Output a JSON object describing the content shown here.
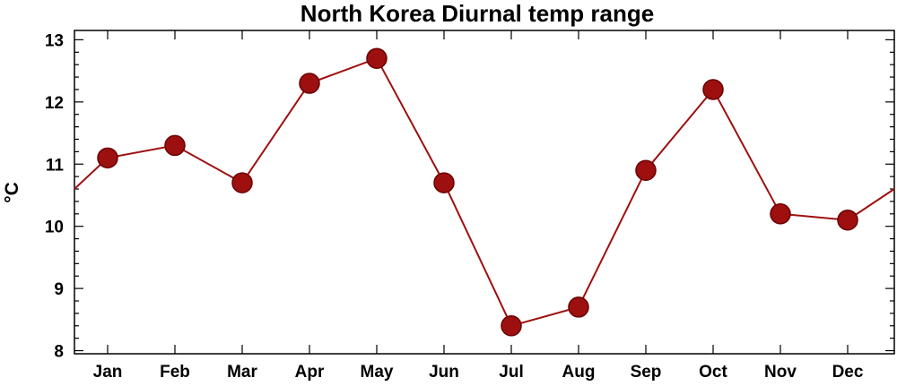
{
  "chart_data": {
    "type": "line",
    "title": "North Korea Diurnal temp range",
    "xlabel": "",
    "ylabel": "°C",
    "categories": [
      "Jan",
      "Feb",
      "Mar",
      "Apr",
      "May",
      "Jun",
      "Jul",
      "Aug",
      "Sep",
      "Oct",
      "Nov",
      "Dec"
    ],
    "series": [
      {
        "values": [
          11.1,
          11.3,
          10.7,
          12.3,
          12.7,
          10.7,
          8.4,
          8.7,
          10.9,
          12.2,
          10.2,
          10.1
        ]
      }
    ],
    "wraparound": {
      "start_value": 10.6,
      "end_value": 10.6
    },
    "ylim": [
      7.95,
      13.15
    ],
    "yticks": [
      8,
      9,
      10,
      11,
      12,
      13
    ],
    "ytick_labels": [
      "8",
      "9",
      "10",
      "11",
      "12",
      "13"
    ],
    "grid": false,
    "legend": "none",
    "colors": {
      "line": "#9e1010",
      "marker": "#9e1010",
      "marker_edge": "#6a0000"
    }
  }
}
